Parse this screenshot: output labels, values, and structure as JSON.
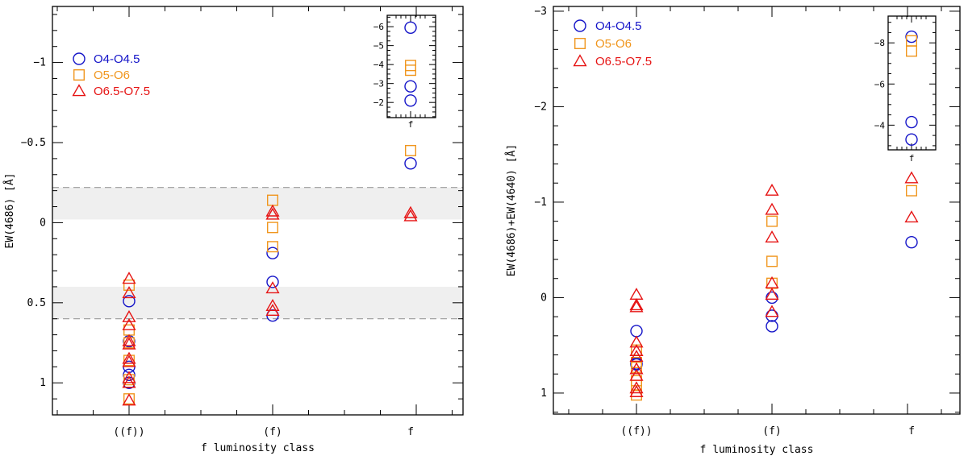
{
  "figure": {
    "marker_colors": {
      "O4-O4.5": "#1414c8",
      "O5-O6": "#f0961e",
      "O6.5-O7.5": "#e61414"
    },
    "legend": [
      {
        "label": "O4-O4.5",
        "marker": "circle"
      },
      {
        "label": "O5-O6",
        "marker": "square"
      },
      {
        "label": "O6.5-O7.5",
        "marker": "triangle"
      }
    ]
  },
  "chart_data": [
    {
      "type": "scatter",
      "name": "left",
      "xlabel": "f luminosity class",
      "ylabel": "EW(4686) [Å]",
      "categories": [
        "((f))",
        "(f)",
        "f"
      ],
      "ylim": [
        1.2,
        -1.35
      ],
      "yticks": [
        1,
        0.5,
        0,
        -0.5,
        -1
      ],
      "ytick_labels": [
        "1",
        "0.5",
        "0",
        "−0.5",
        "−1"
      ],
      "bands": [
        [
          -0.22,
          -0.02
        ],
        [
          0.4,
          0.6
        ]
      ],
      "dashed_lines": [
        -0.22,
        0.6
      ],
      "series": [
        {
          "name": "O4-O4.5",
          "marker": "circle",
          "points": [
            {
              "x": "((f))",
              "y": 0.49
            },
            {
              "x": "((f))",
              "y": 0.74
            },
            {
              "x": "((f))",
              "y": 0.9
            },
            {
              "x": "((f))",
              "y": 0.95
            },
            {
              "x": "((f))",
              "y": 1.0
            },
            {
              "x": "(f)",
              "y": 0.19
            },
            {
              "x": "(f)",
              "y": 0.37
            },
            {
              "x": "(f)",
              "y": 0.58
            },
            {
              "x": "f",
              "y": -0.37
            }
          ]
        },
        {
          "name": "O5-O6",
          "marker": "square",
          "points": [
            {
              "x": "((f))",
              "y": 0.39
            },
            {
              "x": "((f))",
              "y": 0.67
            },
            {
              "x": "((f))",
              "y": 0.75
            },
            {
              "x": "((f))",
              "y": 0.86
            },
            {
              "x": "((f))",
              "y": 0.98
            },
            {
              "x": "((f))",
              "y": 1.1
            },
            {
              "x": "(f)",
              "y": -0.14
            },
            {
              "x": "(f)",
              "y": 0.03
            },
            {
              "x": "(f)",
              "y": 0.15
            },
            {
              "x": "f",
              "y": -0.45
            }
          ]
        },
        {
          "name": "O6.5-O7.5",
          "marker": "triangle",
          "points": [
            {
              "x": "((f))",
              "y": 0.35
            },
            {
              "x": "((f))",
              "y": 0.44
            },
            {
              "x": "((f))",
              "y": 0.59
            },
            {
              "x": "((f))",
              "y": 0.64
            },
            {
              "x": "((f))",
              "y": 0.74
            },
            {
              "x": "((f))",
              "y": 0.76
            },
            {
              "x": "((f))",
              "y": 0.85
            },
            {
              "x": "((f))",
              "y": 0.87
            },
            {
              "x": "((f))",
              "y": 0.97
            },
            {
              "x": "((f))",
              "y": 1.0
            },
            {
              "x": "((f))",
              "y": 1.11
            },
            {
              "x": "(f)",
              "y": -0.07
            },
            {
              "x": "(f)",
              "y": -0.05
            },
            {
              "x": "(f)",
              "y": 0.41
            },
            {
              "x": "(f)",
              "y": 0.52
            },
            {
              "x": "(f)",
              "y": 0.55
            },
            {
              "x": "f",
              "y": -0.06
            },
            {
              "x": "f",
              "y": -0.04
            }
          ]
        }
      ],
      "inset": {
        "xlabel": "f",
        "ylim": [
          -1.2,
          -6.6
        ],
        "yticks": [
          -6,
          -5,
          -4,
          -3,
          -2
        ],
        "ytick_labels": [
          "−6",
          "−5",
          "−4",
          "−3",
          "−2"
        ],
        "series": [
          {
            "name": "O4-O4.5",
            "marker": "circle",
            "values": [
              -5.95,
              -2.85,
              -2.1
            ]
          },
          {
            "name": "O5-O6",
            "marker": "square",
            "values": [
              -3.95,
              -3.7
            ]
          }
        ]
      }
    },
    {
      "type": "scatter",
      "name": "right",
      "xlabel": "f luminosity class",
      "ylabel": "EW(4686)+EW(4640) [Å]",
      "categories": [
        "((f))",
        "(f)",
        "f"
      ],
      "ylim": [
        1.22,
        -3.05
      ],
      "yticks": [
        1,
        0,
        -1,
        -2,
        -3
      ],
      "ytick_labels": [
        "1",
        "0",
        "−1",
        "−2",
        "−3"
      ],
      "series": [
        {
          "name": "O4-O4.5",
          "marker": "circle",
          "points": [
            {
              "x": "((f))",
              "y": 0.35
            },
            {
              "x": "((f))",
              "y": 0.69
            },
            {
              "x": "((f))",
              "y": 0.7
            },
            {
              "x": "(f)",
              "y": 0.0
            },
            {
              "x": "(f)",
              "y": 0.19
            },
            {
              "x": "(f)",
              "y": 0.3
            },
            {
              "x": "f",
              "y": -0.58
            }
          ]
        },
        {
          "name": "O5-O6",
          "marker": "square",
          "points": [
            {
              "x": "((f))",
              "y": 0.55
            },
            {
              "x": "((f))",
              "y": 0.68
            },
            {
              "x": "((f))",
              "y": 0.73
            },
            {
              "x": "((f))",
              "y": 0.87
            },
            {
              "x": "((f))",
              "y": 0.92
            },
            {
              "x": "((f))",
              "y": 1.02
            },
            {
              "x": "(f)",
              "y": -0.8
            },
            {
              "x": "(f)",
              "y": -0.38
            },
            {
              "x": "(f)",
              "y": -0.15
            },
            {
              "x": "f",
              "y": -1.12
            }
          ]
        },
        {
          "name": "O6.5-O7.5",
          "marker": "triangle",
          "points": [
            {
              "x": "((f))",
              "y": -0.03
            },
            {
              "x": "((f))",
              "y": 0.08
            },
            {
              "x": "((f))",
              "y": 0.1
            },
            {
              "x": "((f))",
              "y": 0.47
            },
            {
              "x": "((f))",
              "y": 0.56
            },
            {
              "x": "((f))",
              "y": 0.62
            },
            {
              "x": "((f))",
              "y": 0.75
            },
            {
              "x": "((f))",
              "y": 0.82
            },
            {
              "x": "((f))",
              "y": 0.95
            },
            {
              "x": "((f))",
              "y": 0.99
            },
            {
              "x": "(f)",
              "y": -1.12
            },
            {
              "x": "(f)",
              "y": -0.92
            },
            {
              "x": "(f)",
              "y": -0.63
            },
            {
              "x": "(f)",
              "y": -0.15
            },
            {
              "x": "(f)",
              "y": -0.03
            },
            {
              "x": "(f)",
              "y": 0.15
            },
            {
              "x": "f",
              "y": -1.25
            },
            {
              "x": "f",
              "y": -0.84
            }
          ]
        }
      ],
      "inset": {
        "xlabel": "f",
        "ylim": [
          -2.8,
          -9.3
        ],
        "yticks": [
          -8,
          -6,
          -4
        ],
        "ytick_labels": [
          "−8",
          "−6",
          "−4"
        ],
        "series": [
          {
            "name": "O4-O4.5",
            "marker": "circle",
            "values": [
              -8.3,
              -4.15,
              -3.3
            ]
          },
          {
            "name": "O5-O6",
            "marker": "square",
            "values": [
              -8.1,
              -7.6
            ]
          }
        ]
      }
    }
  ]
}
